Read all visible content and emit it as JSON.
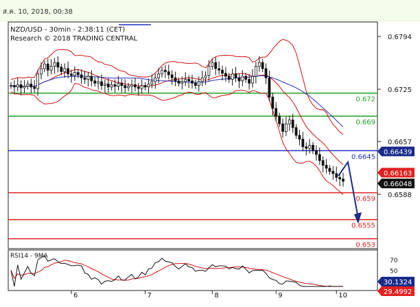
{
  "header": {
    "timestamp": "ส.ค. 10, 2018, 00:38"
  },
  "chart_data": {
    "type": "candlestick",
    "title": "NZD/USD - 30min - 2:38:11 (CET)",
    "subtitle": "Research © 2018 TRADING CENTRAL",
    "ylim": [
      0.6518,
      0.6812
    ],
    "y_ticks": [
      "0.6794",
      "0.6725",
      "0.6657",
      "0.6588"
    ],
    "x_ticks": [
      {
        "label": "6",
        "index": 18
      },
      {
        "label": "7",
        "index": 40
      },
      {
        "label": "8",
        "index": 60
      },
      {
        "label": "9",
        "index": 79
      },
      {
        "label": "10",
        "index": 97
      }
    ],
    "levels": [
      {
        "value": 0.672,
        "label": "0.672",
        "color": "#22a022"
      },
      {
        "value": 0.669,
        "label": "0.669",
        "color": "#22a022"
      },
      {
        "value": 0.6645,
        "label": "0.6645",
        "color": "#2030c0"
      },
      {
        "value": 0.659,
        "label": "0.659",
        "color": "#e02020"
      },
      {
        "value": 0.6555,
        "label": "0.6555",
        "color": "#e02020"
      },
      {
        "value": 0.653,
        "label": "0.653",
        "color": "#e02020"
      }
    ],
    "price_tags": [
      {
        "value": 0.66439,
        "label": "0.66439",
        "color": "#1a2a8a"
      },
      {
        "value": 0.66163,
        "label": "0.66163",
        "color": "#e02020"
      },
      {
        "value": 0.66048,
        "label": "0.66048",
        "color": "#111111"
      }
    ],
    "close": [
      0.673,
      0.6728,
      0.6731,
      0.6727,
      0.6729,
      0.6732,
      0.6728,
      0.6726,
      0.6745,
      0.6752,
      0.6758,
      0.675,
      0.6755,
      0.676,
      0.6754,
      0.6748,
      0.6752,
      0.6745,
      0.6743,
      0.6747,
      0.6744,
      0.674,
      0.6738,
      0.6742,
      0.6736,
      0.6733,
      0.6735,
      0.673,
      0.6732,
      0.6728,
      0.6731,
      0.6729,
      0.6733,
      0.673,
      0.6727,
      0.6729,
      0.6731,
      0.6728,
      0.6726,
      0.673,
      0.6728,
      0.6732,
      0.6735,
      0.674,
      0.6745,
      0.675,
      0.6748,
      0.6744,
      0.674,
      0.6736,
      0.6733,
      0.6735,
      0.6738,
      0.6736,
      0.6733,
      0.673,
      0.6735,
      0.674,
      0.6743,
      0.6755,
      0.676,
      0.6752,
      0.675,
      0.6746,
      0.6742,
      0.6738,
      0.6745,
      0.674,
      0.6736,
      0.6742,
      0.6738,
      0.6733,
      0.6742,
      0.6755,
      0.676,
      0.6752,
      0.674,
      0.6715,
      0.67,
      0.669,
      0.668,
      0.667,
      0.668,
      0.6685,
      0.6675,
      0.6665,
      0.666,
      0.665,
      0.6648,
      0.6652,
      0.6645,
      0.664,
      0.6632,
      0.6626,
      0.6622,
      0.6618,
      0.6615,
      0.661,
      0.6608,
      0.6605
    ],
    "rsi": {
      "name": "RSI14 - 9MA",
      "ylim": [
        15,
        85
      ],
      "ticks": [
        "70",
        "50"
      ],
      "tags": [
        {
          "value": 30.1324,
          "label": "30.1324",
          "color": "#1a2a8a"
        },
        {
          "value": 29.4992,
          "label": "29.4992",
          "color": "#e02020"
        }
      ]
    }
  }
}
